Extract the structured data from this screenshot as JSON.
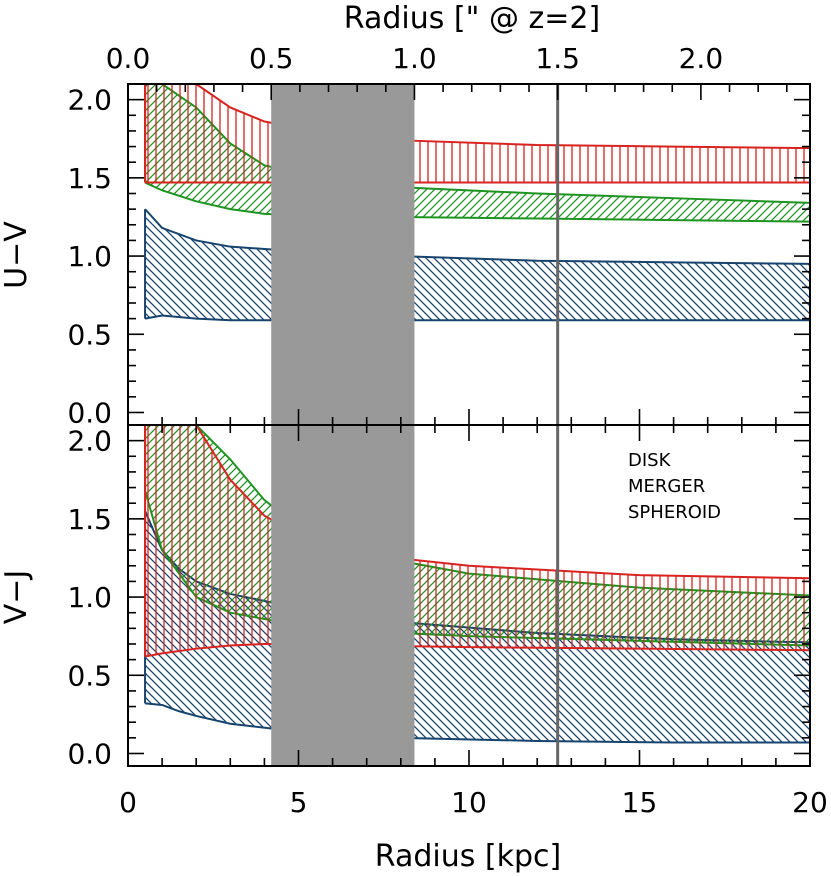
{
  "chart_data": {
    "type": "area",
    "x_axis": {
      "label": "Radius [kpc]",
      "range": [
        0,
        20
      ],
      "ticks": [
        "0",
        "5",
        "10",
        "15",
        "20"
      ],
      "tick_values": [
        0,
        5,
        10,
        15,
        20
      ]
    },
    "top_axis": {
      "label": "Radius [\" @ z=2]",
      "ticks": [
        "0.0",
        "0.5",
        "1.0",
        "1.5",
        "2.0"
      ],
      "tick_values": [
        0.0,
        0.5,
        1.0,
        1.5,
        2.0
      ],
      "kpc_per_arcsec": 8.4
    },
    "shaded_region": {
      "x_range": [
        4.2,
        8.4
      ],
      "color": "#999999"
    },
    "vertical_line": {
      "x": 12.6,
      "color": "#666666"
    },
    "legend": {
      "placement": "top-right of lower panel",
      "entries": [
        {
          "label": "DISK",
          "color": "#16446e"
        },
        {
          "label": "MERGER",
          "color": "#1e9421"
        },
        {
          "label": "SPHEROID",
          "color": "#d8231f"
        }
      ]
    },
    "panels": [
      {
        "ylabel": "U−V",
        "ylim": [
          -0.08,
          2.1
        ],
        "yticks": [
          "0.0",
          "0.5",
          "1.0",
          "1.5",
          "2.0"
        ],
        "ytick_values": [
          0.0,
          0.5,
          1.0,
          1.5,
          2.0
        ],
        "series": [
          {
            "name": "DISK",
            "hatch": "backslash",
            "x": [
              0.5,
              1.0,
              2.0,
              3.0,
              5.0,
              8.0,
              12.0,
              16.0,
              20.0
            ],
            "upper": [
              1.3,
              1.18,
              1.1,
              1.06,
              1.03,
              1.0,
              0.97,
              0.96,
              0.95
            ],
            "lower": [
              0.6,
              0.62,
              0.6,
              0.59,
              0.59,
              0.59,
              0.59,
              0.59,
              0.59
            ]
          },
          {
            "name": "MERGER",
            "hatch": "slash",
            "x": [
              0.5,
              1.0,
              2.0,
              3.0,
              4.0,
              6.0,
              8.0,
              12.0,
              16.0,
              20.0
            ],
            "upper": [
              2.1,
              2.1,
              1.95,
              1.72,
              1.58,
              1.48,
              1.44,
              1.4,
              1.37,
              1.34
            ],
            "lower": [
              1.47,
              1.42,
              1.35,
              1.3,
              1.27,
              1.25,
              1.25,
              1.24,
              1.23,
              1.22
            ]
          },
          {
            "name": "SPHEROID",
            "hatch": "vertical",
            "x": [
              0.5,
              1.0,
              2.0,
              3.0,
              4.0,
              6.0,
              8.0,
              12.0,
              16.0,
              20.0
            ],
            "upper": [
              2.1,
              2.1,
              2.1,
              1.95,
              1.86,
              1.78,
              1.74,
              1.71,
              1.7,
              1.69
            ],
            "lower": [
              1.47,
              1.47,
              1.47,
              1.47,
              1.47,
              1.47,
              1.47,
              1.47,
              1.47,
              1.47
            ]
          }
        ]
      },
      {
        "ylabel": "V−J",
        "ylim": [
          -0.08,
          2.1
        ],
        "yticks": [
          "0.0",
          "0.5",
          "1.0",
          "1.5",
          "2.0"
        ],
        "ytick_values": [
          0.0,
          0.5,
          1.0,
          1.5,
          2.0
        ],
        "series": [
          {
            "name": "DISK",
            "hatch": "backslash",
            "x": [
              0.5,
              1.0,
              1.5,
              2.0,
              3.0,
              5.0,
              8.0,
              12.0,
              16.0,
              20.0
            ],
            "upper": [
              1.55,
              1.3,
              1.18,
              1.1,
              1.02,
              0.93,
              0.84,
              0.77,
              0.73,
              0.71
            ],
            "lower": [
              0.32,
              0.31,
              0.27,
              0.24,
              0.19,
              0.14,
              0.1,
              0.08,
              0.07,
              0.07
            ]
          },
          {
            "name": "MERGER",
            "hatch": "slash",
            "x": [
              0.5,
              1.0,
              2.0,
              3.0,
              4.0,
              5.0,
              7.0,
              10.0,
              15.0,
              20.0
            ],
            "upper": [
              2.1,
              2.1,
              2.1,
              1.88,
              1.62,
              1.45,
              1.27,
              1.15,
              1.06,
              1.01
            ],
            "lower": [
              1.68,
              1.3,
              1.0,
              0.9,
              0.86,
              0.82,
              0.78,
              0.75,
              0.72,
              0.69
            ]
          },
          {
            "name": "SPHEROID",
            "hatch": "vertical",
            "x": [
              0.5,
              1.0,
              2.0,
              3.0,
              4.0,
              5.0,
              7.0,
              10.0,
              15.0,
              20.0
            ],
            "upper": [
              2.1,
              2.1,
              2.1,
              1.75,
              1.52,
              1.4,
              1.27,
              1.2,
              1.14,
              1.12
            ],
            "lower": [
              0.62,
              0.64,
              0.67,
              0.69,
              0.7,
              0.7,
              0.69,
              0.68,
              0.67,
              0.66
            ]
          }
        ]
      }
    ]
  }
}
